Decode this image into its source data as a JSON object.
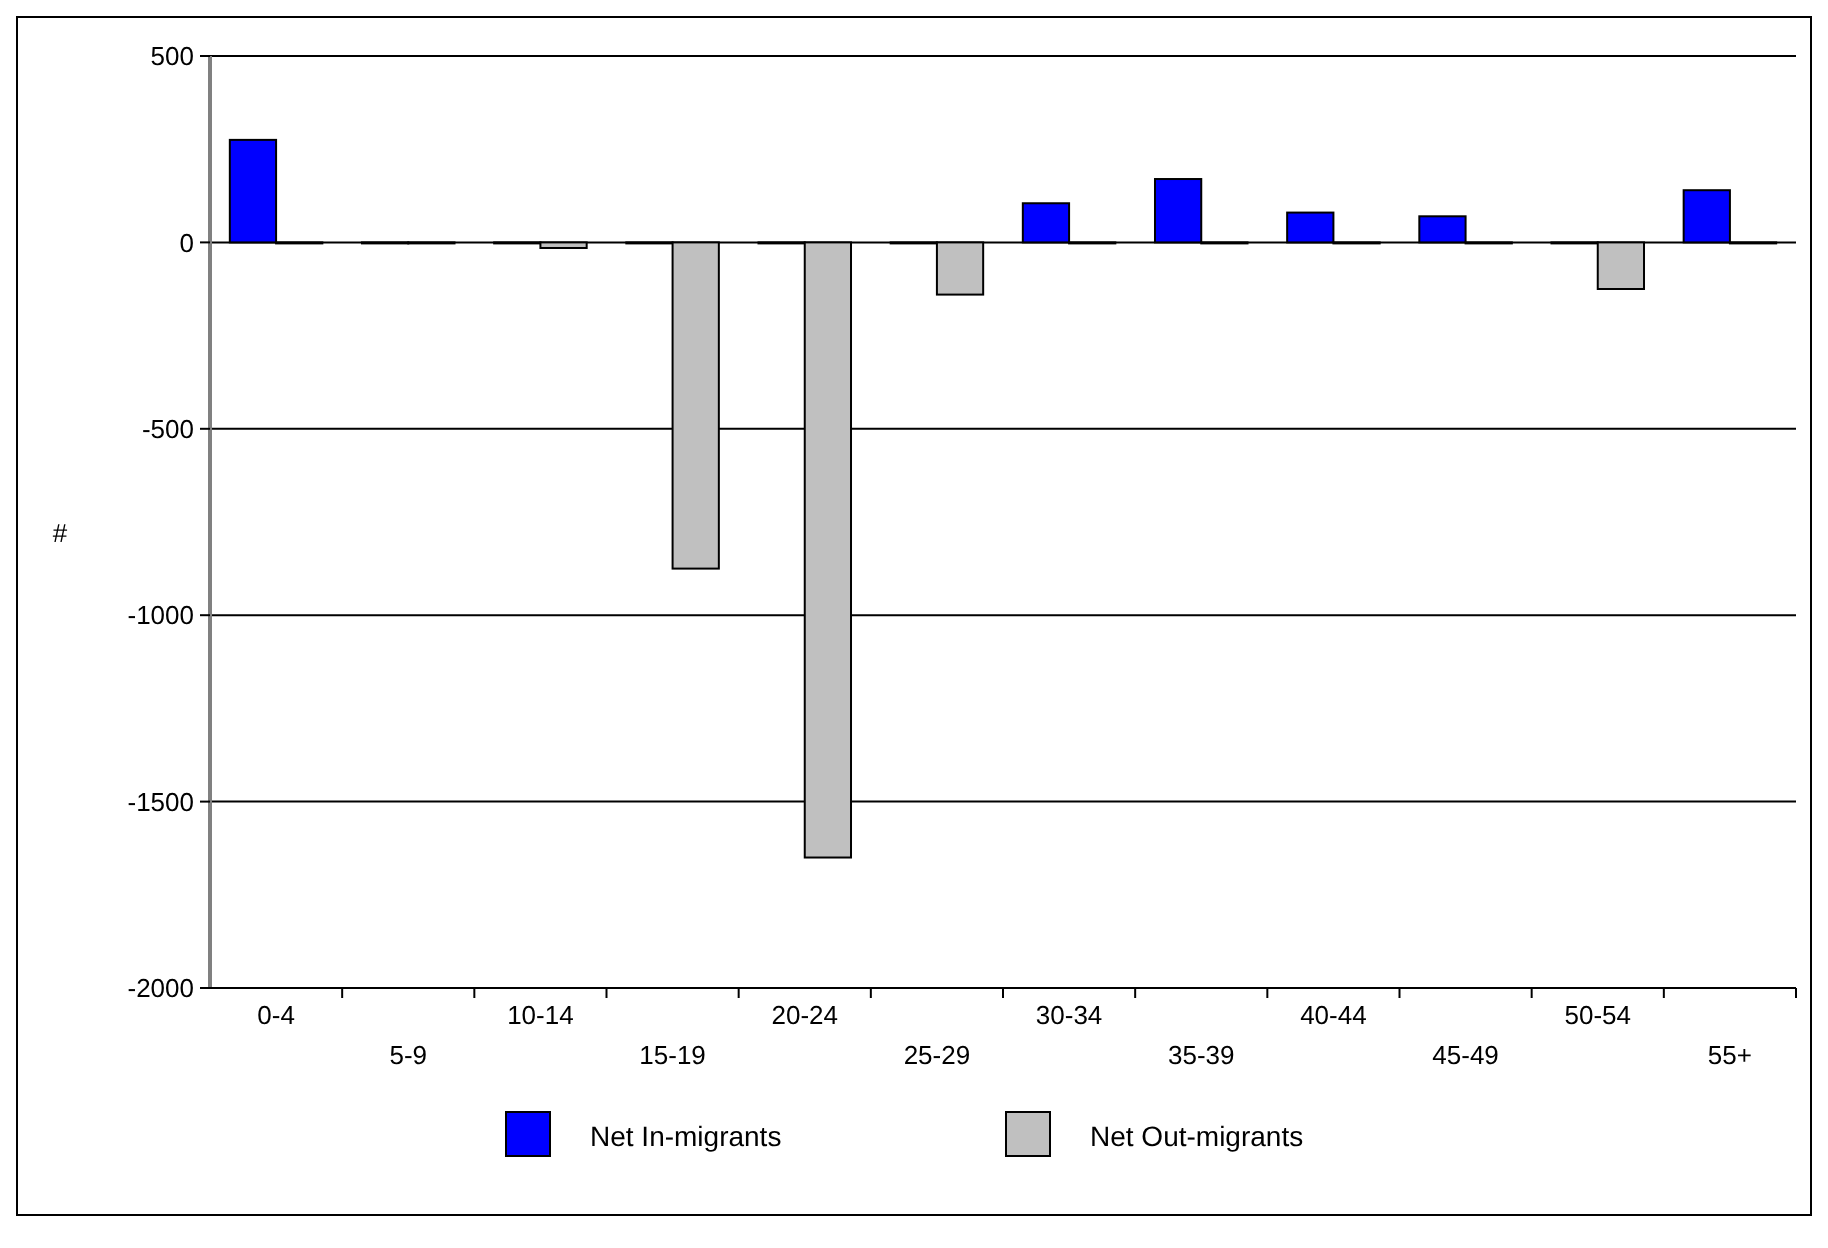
{
  "chart_data": {
    "type": "bar",
    "ylabel": "#",
    "categories": [
      "0-4",
      "5-9",
      "10-14",
      "15-19",
      "20-24",
      "25-29",
      "30-34",
      "35-39",
      "40-44",
      "45-49",
      "50-54",
      "55+"
    ],
    "series": [
      {
        "name": "Net In-migrants",
        "color": "#0000ff",
        "values": [
          275,
          0,
          0,
          0,
          0,
          0,
          105,
          170,
          80,
          70,
          0,
          140
        ]
      },
      {
        "name": "Net Out-migrants",
        "color": "#c0c0c0",
        "values": [
          0,
          0,
          -15,
          -875,
          -1650,
          -140,
          0,
          0,
          0,
          0,
          -125,
          0
        ]
      }
    ],
    "ylim": [
      -2000,
      500
    ],
    "yticks": [
      -2000,
      -1500,
      -1000,
      -500,
      0,
      500
    ],
    "grid": "y",
    "legend": "bottom"
  }
}
